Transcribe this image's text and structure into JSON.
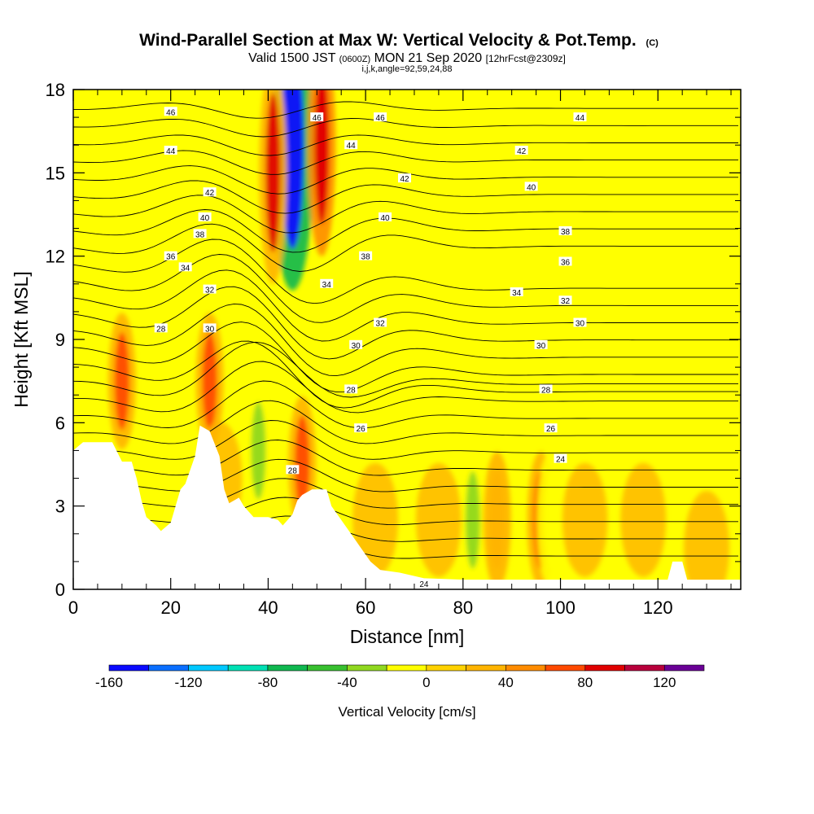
{
  "header": {
    "title_main": "Wind-Parallel Section at Max W: Vertical Velocity & Pot.Temp.",
    "title_c": "(C)",
    "valid_prefix": "Valid 1500 JST",
    "valid_z": "(0600Z)",
    "valid_date": "MON 21 Sep 2020",
    "valid_fcst": "[12hrFcst@2309z]",
    "indices": "i,j,k,angle=92,59,24,88"
  },
  "chart_data": {
    "type": "heatmap",
    "xlabel": "Distance [nm]",
    "ylabel": "Height [Kft MSL]",
    "xlim": [
      0,
      137
    ],
    "ylim": [
      0,
      18
    ],
    "x_ticks": [
      0,
      20,
      40,
      60,
      80,
      100,
      120
    ],
    "y_ticks": [
      0,
      3,
      6,
      9,
      12,
      15,
      18
    ],
    "colorbar": {
      "label": "Vertical Velocity [cm/s]",
      "min": -160,
      "max": 140,
      "step": 20,
      "tick_values": [
        -160,
        -120,
        -80,
        -40,
        0,
        40,
        80,
        120
      ],
      "tick_labels": [
        "-160",
        "-120",
        "-80",
        "-40",
        "0",
        "40",
        "80",
        "120"
      ],
      "colors": [
        "#0a0aff",
        "#0a6fff",
        "#00c8ff",
        "#00e0b4",
        "#10b850",
        "#38c030",
        "#90d820",
        "#ffff00",
        "#ffd200",
        "#ffb400",
        "#ff8c00",
        "#ff4a00",
        "#e00000",
        "#b8003c",
        "#6a0096"
      ]
    },
    "background_field": "#ffff00",
    "features": [
      {
        "x": 10,
        "y": 7.5,
        "w": 60,
        "kind": "updraft"
      },
      {
        "x": 28,
        "y": 7.5,
        "w": 60,
        "kind": "updraft"
      },
      {
        "x": 47,
        "y": 4.5,
        "w": 60,
        "kind": "updraft"
      },
      {
        "x": 45,
        "y": 16,
        "w": -150,
        "kind": "downdraft"
      },
      {
        "x": 51,
        "y": 16,
        "w": 90,
        "kind": "updraft"
      },
      {
        "x": 41,
        "y": 15,
        "w": 80,
        "kind": "updraft"
      },
      {
        "x": 38,
        "y": 5,
        "w": -30,
        "kind": "downdraft"
      },
      {
        "x": 96,
        "y": 2.5,
        "w": 70,
        "kind": "updraft"
      },
      {
        "x": 98,
        "y": 2.5,
        "w": -20,
        "kind": "downdraft"
      },
      {
        "x": 82,
        "y": 2.5,
        "w": -40,
        "kind": "downdraft"
      },
      {
        "x": 87,
        "y": 2.5,
        "w": 30,
        "kind": "updraft"
      }
    ],
    "theta_contour_labels": [
      "24",
      "24",
      "26",
      "26",
      "28",
      "28",
      "28",
      "28",
      "30",
      "30",
      "30",
      "30",
      "32",
      "32",
      "32",
      "34",
      "34",
      "34",
      "36",
      "36",
      "38",
      "38",
      "38",
      "40",
      "40",
      "40",
      "42",
      "42",
      "42",
      "44",
      "44",
      "44",
      "46",
      "46",
      "46"
    ],
    "terrain_profile": [
      [
        0,
        5.0
      ],
      [
        2,
        5.3
      ],
      [
        8,
        5.3
      ],
      [
        10,
        4.6
      ],
      [
        12,
        4.6
      ],
      [
        13,
        4.0
      ],
      [
        14,
        3.2
      ],
      [
        15,
        2.6
      ],
      [
        17,
        2.3
      ],
      [
        18,
        2.1
      ],
      [
        20,
        2.4
      ],
      [
        21,
        3.0
      ],
      [
        22,
        3.6
      ],
      [
        23,
        3.8
      ],
      [
        25,
        4.8
      ],
      [
        26,
        5.9
      ],
      [
        28,
        5.7
      ],
      [
        30,
        4.8
      ],
      [
        31,
        3.6
      ],
      [
        32,
        3.1
      ],
      [
        34,
        3.3
      ],
      [
        35,
        3.0
      ],
      [
        37,
        2.6
      ],
      [
        39,
        2.6
      ],
      [
        40,
        2.6
      ],
      [
        42,
        2.5
      ],
      [
        43,
        2.3
      ],
      [
        44,
        2.5
      ],
      [
        45,
        2.7
      ],
      [
        46,
        3.2
      ],
      [
        47,
        3.4
      ],
      [
        49,
        3.6
      ],
      [
        52,
        3.6
      ],
      [
        53,
        3.0
      ],
      [
        55,
        2.5
      ],
      [
        57,
        2.0
      ],
      [
        59,
        1.5
      ],
      [
        61,
        1.0
      ],
      [
        63,
        0.7
      ],
      [
        67,
        0.6
      ],
      [
        72,
        0.4
      ],
      [
        80,
        0.35
      ],
      [
        100,
        0.35
      ],
      [
        114,
        0.35
      ],
      [
        122,
        0.35
      ],
      [
        123,
        1.0
      ],
      [
        125,
        1.0
      ],
      [
        126,
        0.35
      ],
      [
        137,
        0.35
      ]
    ]
  }
}
